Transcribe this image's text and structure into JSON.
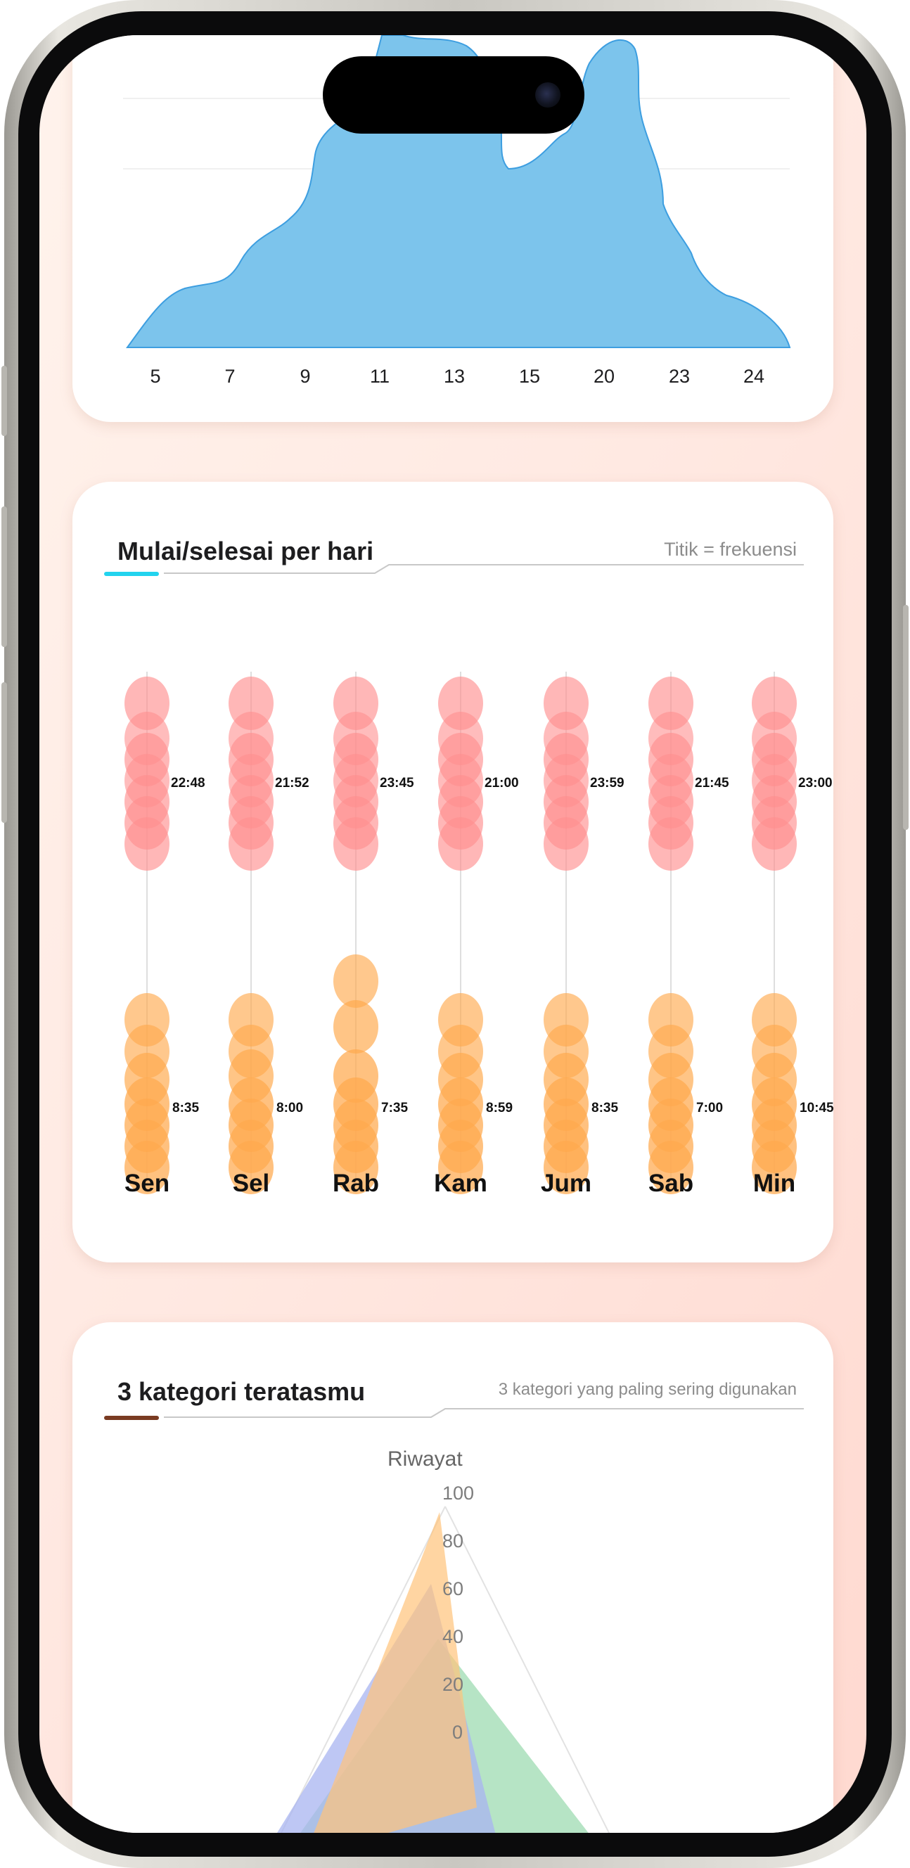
{
  "area_chart": {
    "x_ticks": [
      "5",
      "7",
      "9",
      "11",
      "13",
      "15",
      "20",
      "23",
      "24"
    ],
    "color": "#7cc4ec",
    "stroke": "#3d9ee0"
  },
  "start_end": {
    "title": "Mulai/selesai per hari",
    "subtitle": "Titik = frekuensi",
    "accent_color": "#22d3ee",
    "end_color": "#ff8f8f",
    "start_color": "#ffa94d",
    "days": [
      {
        "label": "Sen",
        "end": "22:48",
        "start": "8:35"
      },
      {
        "label": "Sel",
        "end": "21:52",
        "start": "8:00"
      },
      {
        "label": "Rab",
        "end": "23:45",
        "start": "7:35"
      },
      {
        "label": "Kam",
        "end": "21:00",
        "start": "8:59"
      },
      {
        "label": "Jum",
        "end": "23:59",
        "start": "8:35"
      },
      {
        "label": "Sab",
        "end": "21:45",
        "start": "7:00"
      },
      {
        "label": "Min",
        "end": "23:00",
        "start": "10:45"
      }
    ]
  },
  "top_categories": {
    "title": "3 kategori teratasmu",
    "subtitle": "3 kategori yang paling sering digunakan",
    "accent_color": "#7a3b22",
    "radar_axis_label": "Riwayat",
    "radar_ticks": [
      "100",
      "80",
      "60",
      "40",
      "20",
      "0"
    ]
  }
}
